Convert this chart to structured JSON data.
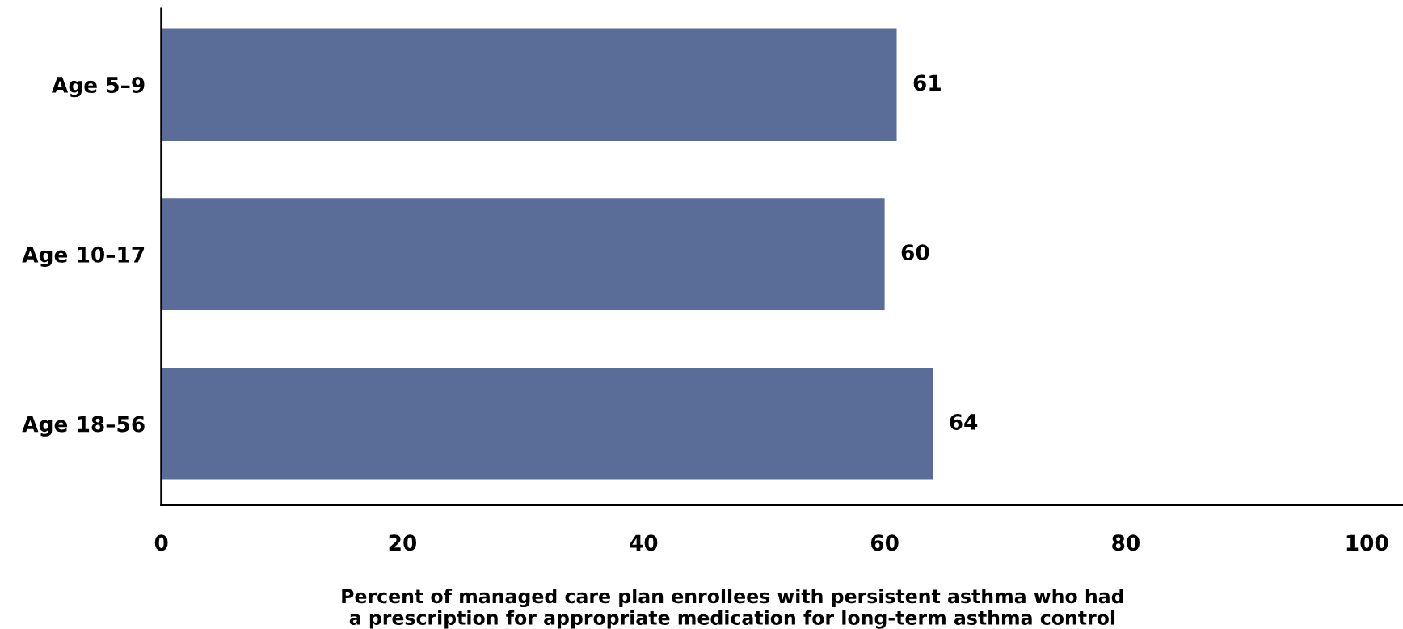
{
  "chart_data": {
    "type": "bar",
    "orientation": "horizontal",
    "categories": [
      "Age 5–9",
      "Age 10–17",
      "Age 18–56"
    ],
    "values": [
      61,
      60,
      64
    ],
    "color": "#5a6d98",
    "xlim": [
      0,
      103
    ],
    "xticks": [
      0,
      20,
      40,
      60,
      80,
      100
    ],
    "xlabel": "Percent of managed care plan enrollees with persistent asthma who had\na prescription for appropriate medication for long-term asthma control",
    "data_labels": true,
    "grid": false,
    "legend": false
  }
}
